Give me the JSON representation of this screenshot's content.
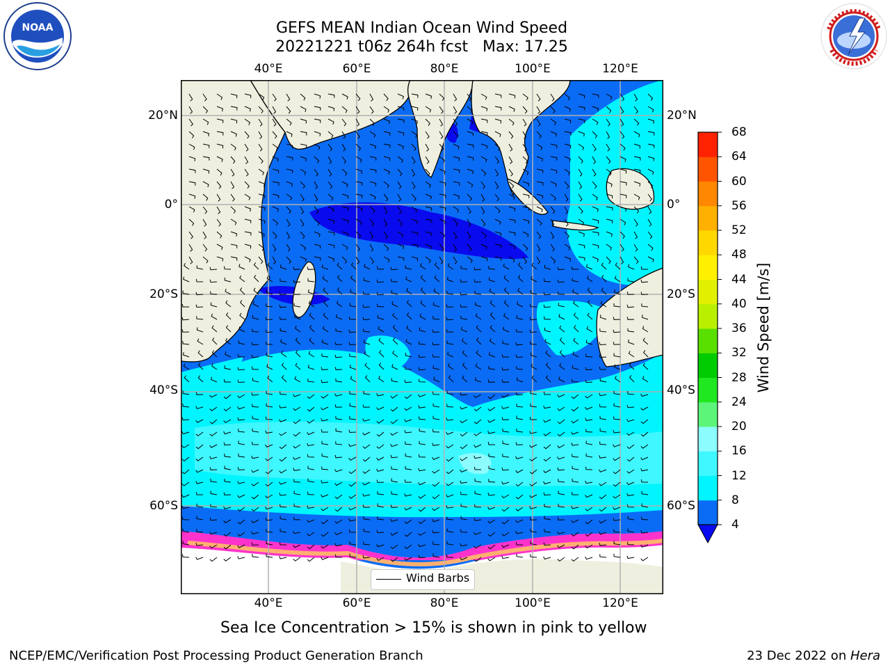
{
  "header": {
    "title_line1": "GEFS MEAN Indian Ocean Wind Speed",
    "title_line2": "20221221 t06z 264h fcst   Max: 17.25"
  },
  "logos": {
    "left": {
      "text": "NOAA",
      "ring_text": "NATIONAL OCEANIC AND ATMOSPHERIC ADMINISTRATION · U.S. DEPARTMENT OF COMMERCE"
    },
    "right": {
      "ring_text": "NATIONAL WEATHER SERVICE"
    }
  },
  "map": {
    "lon_labels": [
      "40°E",
      "60°E",
      "80°E",
      "100°E",
      "120°E"
    ],
    "lat_labels_left": [
      "20°N",
      "0°",
      "20°S",
      "40°S",
      "60°S"
    ],
    "lat_labels_right": [
      "20°N",
      "0°",
      "20°S",
      "40°S",
      "60°S"
    ],
    "land_color": "#efefdf",
    "ice_color": "#ffffff",
    "grid_color": "#b0b0b0",
    "legend_label": "Wind Barbs"
  },
  "colorbar": {
    "label": "Wind Speed [m/s]",
    "ticks": [
      "4",
      "8",
      "12",
      "16",
      "20",
      "24",
      "28",
      "32",
      "36",
      "40",
      "44",
      "48",
      "52",
      "56",
      "60",
      "64",
      "68"
    ],
    "levels": [
      4,
      8,
      12,
      16,
      20,
      24,
      28,
      32,
      36,
      40,
      44,
      48,
      52,
      56,
      60,
      64,
      68
    ],
    "colors": [
      "#0a6cf5",
      "#00f5ff",
      "#3ff7ff",
      "#8cfcff",
      "#5cf57a",
      "#20e820",
      "#00cc00",
      "#5ae000",
      "#b8f000",
      "#e0f000",
      "#fff000",
      "#ffd800",
      "#ffb000",
      "#ff8800",
      "#ff5500",
      "#ff2200",
      "#ff0000"
    ],
    "under_color": "#0a0aee"
  },
  "caption": "Sea Ice Concentration > 15% is shown in pink to yellow",
  "footer": {
    "left": "NCEP/EMC/Verification Post Processing Product Generation Branch",
    "right_prefix": "23 Dec 2022 on ",
    "right_host": "Hera"
  }
}
